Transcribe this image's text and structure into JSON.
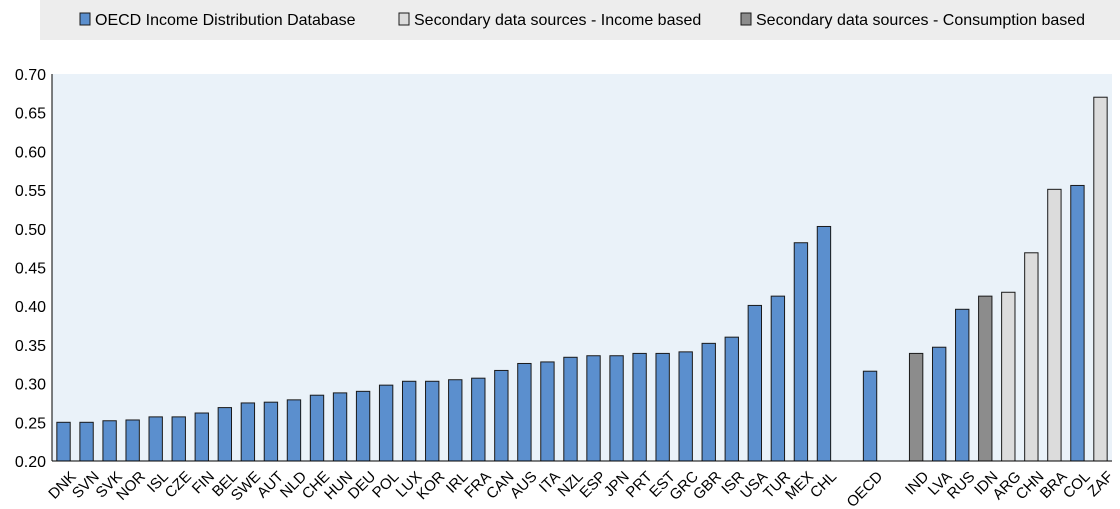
{
  "chart_data": {
    "type": "bar",
    "title": "",
    "xlabel": "",
    "ylabel": "",
    "ylim": [
      0.2,
      0.7
    ],
    "yticks": [
      "0.20",
      "0.25",
      "0.30",
      "0.35",
      "0.40",
      "0.45",
      "0.50",
      "0.55",
      "0.60",
      "0.65",
      "0.70"
    ],
    "grid": false,
    "legend_position": "top",
    "legend": [
      {
        "key": "oecd",
        "label": "OECD Income Distribution Database",
        "color": "#5b8fce"
      },
      {
        "key": "income",
        "label": "Secondary data sources - Income based",
        "color": "#dcdcdc"
      },
      {
        "key": "consumption",
        "label": "Secondary data sources - Consumption based",
        "color": "#8c8c8c"
      }
    ],
    "categories": [
      "DNK",
      "SVN",
      "SVK",
      "NOR",
      "ISL",
      "CZE",
      "FIN",
      "BEL",
      "SWE",
      "AUT",
      "NLD",
      "CHE",
      "HUN",
      "DEU",
      "POL",
      "LUX",
      "KOR",
      "IRL",
      "FRA",
      "CAN",
      "AUS",
      "ITA",
      "NZL",
      "ESP",
      "JPN",
      "PRT",
      "EST",
      "GRC",
      "GBR",
      "ISR",
      "USA",
      "TUR",
      "MEX",
      "CHL",
      "",
      "OECD",
      "",
      "IND",
      "LVA",
      "RUS",
      "IDN",
      "ARG",
      "CHN",
      "BRA",
      "COL",
      "ZAF"
    ],
    "values": [
      0.25,
      0.25,
      0.252,
      0.253,
      0.257,
      0.257,
      0.262,
      0.269,
      0.275,
      0.276,
      0.279,
      0.285,
      0.288,
      0.29,
      0.298,
      0.303,
      0.303,
      0.305,
      0.307,
      0.317,
      0.326,
      0.328,
      0.334,
      0.336,
      0.336,
      0.339,
      0.339,
      0.341,
      0.352,
      0.36,
      0.401,
      0.413,
      0.482,
      0.503,
      null,
      0.316,
      null,
      0.339,
      0.347,
      0.396,
      0.413,
      0.418,
      0.469,
      0.551,
      0.556,
      0.67
    ],
    "groups": [
      "oecd",
      "oecd",
      "oecd",
      "oecd",
      "oecd",
      "oecd",
      "oecd",
      "oecd",
      "oecd",
      "oecd",
      "oecd",
      "oecd",
      "oecd",
      "oecd",
      "oecd",
      "oecd",
      "oecd",
      "oecd",
      "oecd",
      "oecd",
      "oecd",
      "oecd",
      "oecd",
      "oecd",
      "oecd",
      "oecd",
      "oecd",
      "oecd",
      "oecd",
      "oecd",
      "oecd",
      "oecd",
      "oecd",
      "oecd",
      null,
      "oecd",
      null,
      "consumption",
      "oecd",
      "oecd",
      "consumption",
      "income",
      "income",
      "income",
      "oecd",
      "income"
    ]
  },
  "colors": {
    "panel_bg": "#eaf2f9",
    "legend_bg": "#ededed",
    "bar_stroke": "#1a1a1a",
    "axis": "#000000"
  }
}
